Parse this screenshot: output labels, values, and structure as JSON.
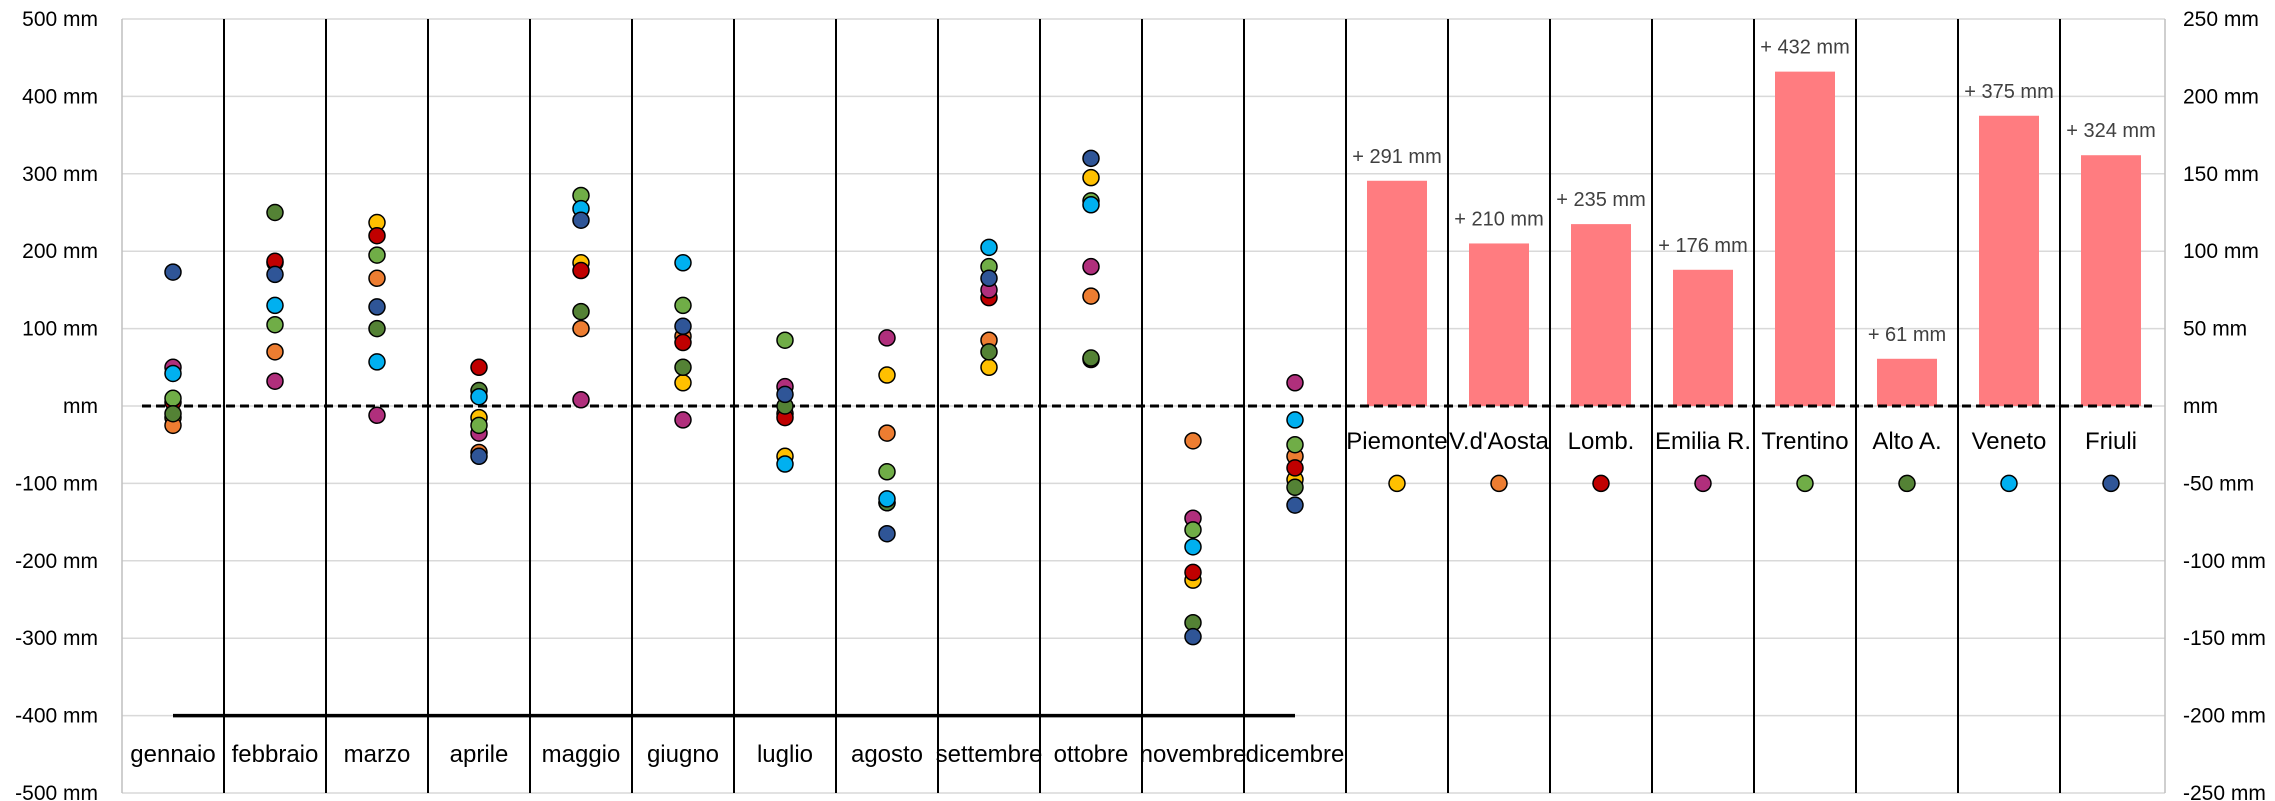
{
  "chart_data": [
    {
      "type": "scatter",
      "left_axis": {
        "ylim": [
          -500,
          500
        ],
        "ticks": [
          {
            "value": 500,
            "label": "500 mm"
          },
          {
            "value": 400,
            "label": "400 mm"
          },
          {
            "value": 300,
            "label": "300 mm"
          },
          {
            "value": 200,
            "label": "200 mm"
          },
          {
            "value": 100,
            "label": "100 mm"
          },
          {
            "value": 0,
            "label": "mm"
          },
          {
            "value": -100,
            "label": "-100 mm"
          },
          {
            "value": -200,
            "label": "-200 mm"
          },
          {
            "value": -300,
            "label": "-300 mm"
          },
          {
            "value": -400,
            "label": "-400 mm"
          },
          {
            "value": -500,
            "label": "-500 mm"
          }
        ]
      },
      "categories": [
        "gennaio",
        "febbraio",
        "marzo",
        "aprile",
        "maggio",
        "giugno",
        "luglio",
        "agosto",
        "settembre",
        "ottobre",
        "novembre",
        "dicembre"
      ],
      "series": [
        {
          "name": "Piemonte",
          "color": "#FFC000",
          "values": [
            -15,
            185,
            237,
            -15,
            185,
            30,
            -65,
            40,
            50,
            295,
            -225,
            -95
          ]
        },
        {
          "name": "V.d'Aosta",
          "color": "#ED7D31",
          "values": [
            -25,
            70,
            165,
            -60,
            100,
            90,
            -10,
            -35,
            85,
            142,
            -45,
            -65
          ]
        },
        {
          "name": "Lomb.",
          "color": "#C00000",
          "values": [
            5,
            187,
            220,
            50,
            175,
            82,
            -15,
            -125,
            140,
            60,
            -215,
            -80
          ]
        },
        {
          "name": "Emilia R.",
          "color": "#B02F7C",
          "values": [
            50,
            32,
            -12,
            -35,
            8,
            -18,
            25,
            88,
            150,
            180,
            -145,
            30
          ]
        },
        {
          "name": "Trentino",
          "color": "#70AD47",
          "values": [
            10,
            105,
            195,
            -25,
            272,
            130,
            85,
            -85,
            180,
            265,
            -160,
            -50
          ]
        },
        {
          "name": "Alto A.",
          "color": "#548235",
          "values": [
            -10,
            250,
            100,
            20,
            122,
            50,
            0,
            -125,
            70,
            62,
            -280,
            -105
          ]
        },
        {
          "name": "Veneto",
          "color": "#00B0F0",
          "values": [
            42,
            130,
            57,
            12,
            255,
            185,
            -75,
            -120,
            205,
            260,
            -182,
            -18
          ]
        },
        {
          "name": "Friuli",
          "color": "#2F5597",
          "values": [
            173,
            170,
            128,
            -65,
            240,
            103,
            15,
            -165,
            165,
            320,
            -298,
            -128
          ]
        }
      ],
      "reference_line_value": -400
    },
    {
      "type": "bar",
      "right_axis": {
        "ylim": [
          -250,
          250
        ],
        "ticks": [
          {
            "value": 250,
            "label": "250 mm"
          },
          {
            "value": 200,
            "label": "200 mm"
          },
          {
            "value": 150,
            "label": "150 mm"
          },
          {
            "value": 100,
            "label": "100 mm"
          },
          {
            "value": 50,
            "label": "50 mm"
          },
          {
            "value": 0,
            "label": "mm"
          },
          {
            "value": -50,
            "label": "-50 mm"
          },
          {
            "value": -100,
            "label": "-100 mm"
          },
          {
            "value": -150,
            "label": "-150 mm"
          },
          {
            "value": -200,
            "label": "-200 mm"
          },
          {
            "value": -250,
            "label": "-250 mm"
          }
        ]
      },
      "categories": [
        "Piemonte",
        "V.d'Aosta",
        "Lomb.",
        "Emilia R.",
        "Trentino",
        "Alto A.",
        "Veneto",
        "Friuli"
      ],
      "left_scale_values": [
        291,
        210,
        235,
        176,
        432,
        61,
        375,
        324
      ],
      "data_labels": [
        "+ 291 mm",
        "+ 210 mm",
        "+ 235 mm",
        "+ 176 mm",
        "+ 432 mm",
        "+ 61 mm",
        "+ 375 mm",
        "+ 324 mm"
      ],
      "bar_color": "#FF7C80",
      "legend_marker_right_scale_value": -50
    }
  ]
}
